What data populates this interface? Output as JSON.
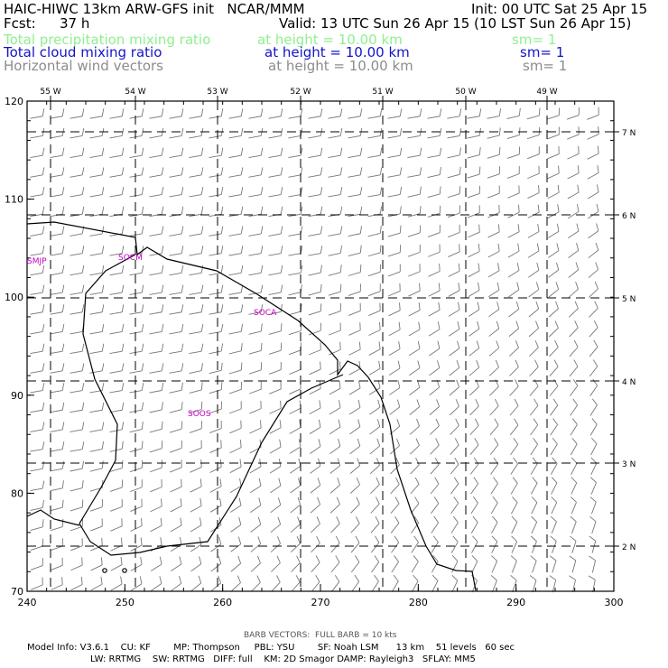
{
  "header": {
    "model_title": "HAIC-HIWC 13km ARW-GFS init   NCAR/MMM",
    "init": "Init: 00 UTC Sat 25 Apr 15",
    "fcst_label": "Fcst:",
    "fcst_value": "37 h",
    "valid": "Valid: 13 UTC Sun 26 Apr 15 (10 LST Sun 26 Apr 15)",
    "fields": [
      {
        "name": "Total precipitation mixing ratio",
        "height": "at height = 10.00 km",
        "sm": "sm= 1",
        "color": "#8fef8f"
      },
      {
        "name": "Total cloud mixing ratio",
        "height": "at height = 10.00 km",
        "sm": "sm= 1",
        "color": "#1515c8"
      },
      {
        "name": "Horizontal wind vectors",
        "height": "at height = 10.00 km",
        "sm": "sm= 1",
        "color": "#8c8c8c"
      }
    ]
  },
  "map": {
    "x_ticks": [
      "240",
      "250",
      "260",
      "270",
      "280",
      "290",
      "300"
    ],
    "y_ticks": [
      "70",
      "80",
      "90",
      "100",
      "110",
      "120"
    ],
    "lon_labels": [
      "55 W",
      "54 W",
      "53 W",
      "52 W",
      "51 W",
      "50 W",
      "49 W"
    ],
    "lat_labels": [
      "7 N",
      "6 N",
      "5 N",
      "4 N",
      "3 N",
      "2 N"
    ],
    "stations": [
      "SMJP",
      "SOCM",
      "SOCA",
      "SOOS"
    ],
    "station_color": "#c000c0"
  },
  "footer": {
    "barb_note": "BARB VECTORS:  FULL BARB = 10 kts",
    "line1": "Model Info: V3.6.1    CU: KF        MP: Thompson     PBL: YSU        SF: Noah LSM      13 km    51 levels   60 sec",
    "line2": "LW: RRTMG    SW: RRTMG   DIFF: full    KM: 2D Smagor DAMP: Rayleigh3   SFLAY: MM5"
  }
}
